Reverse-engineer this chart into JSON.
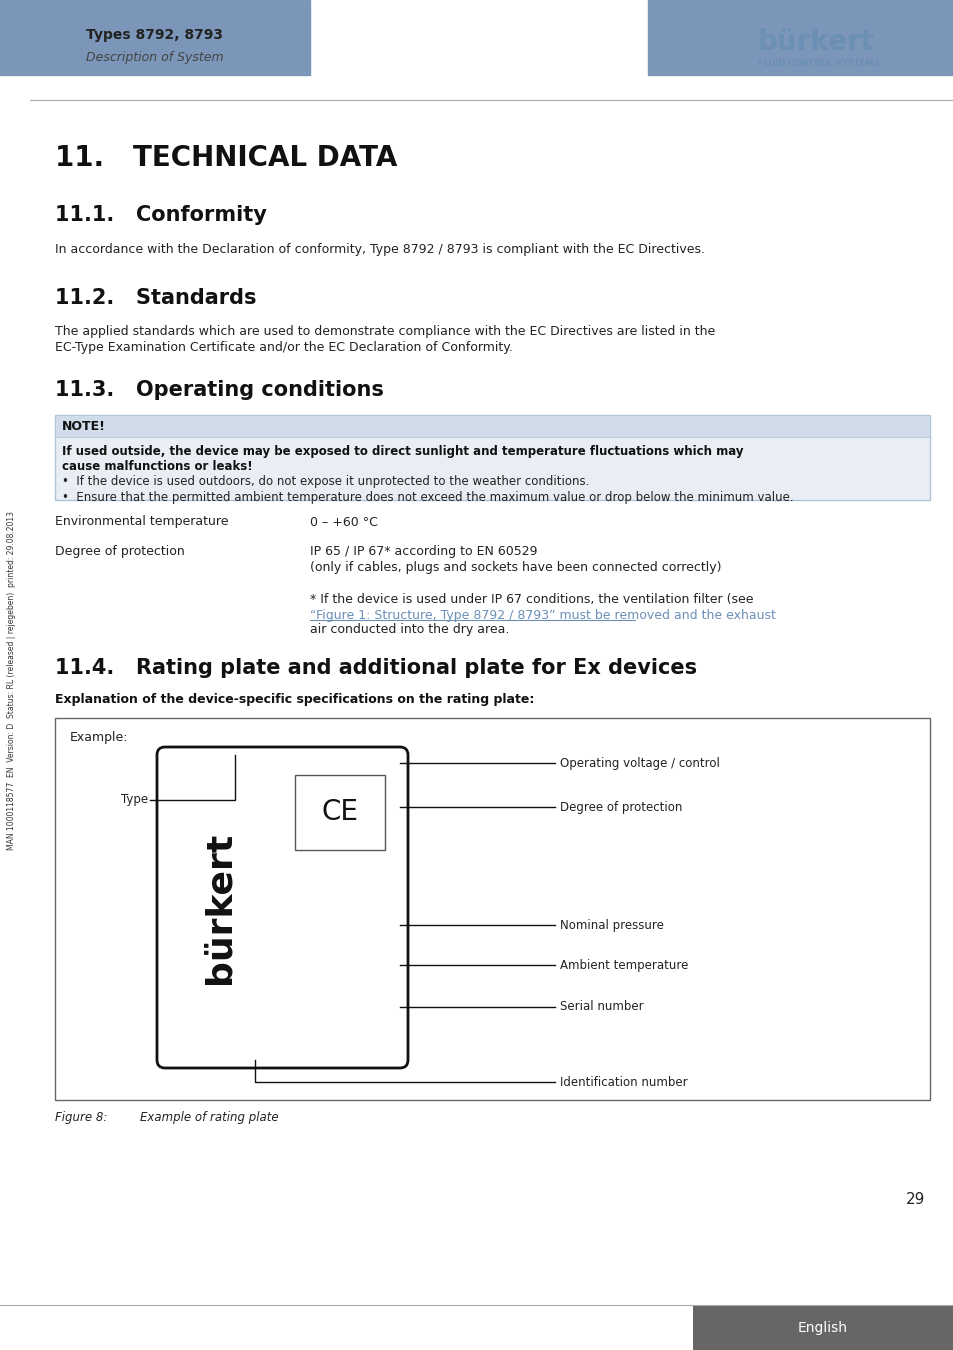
{
  "header_blue": "#7B96B8",
  "header_text": "Types 8792, 8793",
  "header_subtext": "Description of System",
  "burkert_color": "#6B8FB5",
  "title_main": "11.   TECHNICAL DATA",
  "section_11_1": "11.1.   Conformity",
  "section_11_2": "11.2.   Standards",
  "section_11_3": "11.3.   Operating conditions",
  "section_11_4": "11.4.   Rating plate and additional plate for Ex devices",
  "conformity_text": "In accordance with the Declaration of conformity, Type 8792 / 8793 is compliant with the EC Directives.",
  "standards_line1": "The applied standards which are used to demonstrate compliance with the EC Directives are listed in the",
  "standards_line2": "EC-Type Examination Certificate and/or the EC Declaration of Conformity.",
  "note_label": "NOTE!",
  "note_bold_line1": "If used outside, the device may be exposed to direct sunlight and temperature fluctuations which may",
  "note_bold_line2": "cause malfunctions or leaks!",
  "note_bullet1": "•  If the device is used outdoors, do not expose it unprotected to the weather conditions.",
  "note_bullet2": "•  Ensure that the permitted ambient temperature does not exceed the maximum value or drop below the minimum value.",
  "env_temp_label": "Environmental temperature",
  "env_temp_value": "0 – +60 °C",
  "deg_prot_label": "Degree of protection",
  "deg_prot_value1": "IP 65 / IP 67* according to EN 60529",
  "deg_prot_value2": "(only if cables, plugs and sockets have been connected correctly)",
  "deg_prot_note1": "* If the device is used under IP 67 conditions, the ventilation filter (see",
  "deg_prot_note2": "“Figure 1: Structure, Type 8792 / 8793” must be removed and the exhaust",
  "deg_prot_note3": "air conducted into the dry area.",
  "fig8_label": "Figure 8:",
  "fig8_text": "Example of rating plate",
  "explanation_text": "Explanation of the device-specific specifications on the rating plate:",
  "page_number": "29",
  "english_label": "English",
  "sidebar_text": "MAN 1000118577  EN  Version: D  Status: RL (released | rejegeben)  printed: 29.08.2013",
  "note_bg": "#E8EEF4",
  "note_border": "#B0C4D8",
  "note_header_bg": "#D0DCEA"
}
